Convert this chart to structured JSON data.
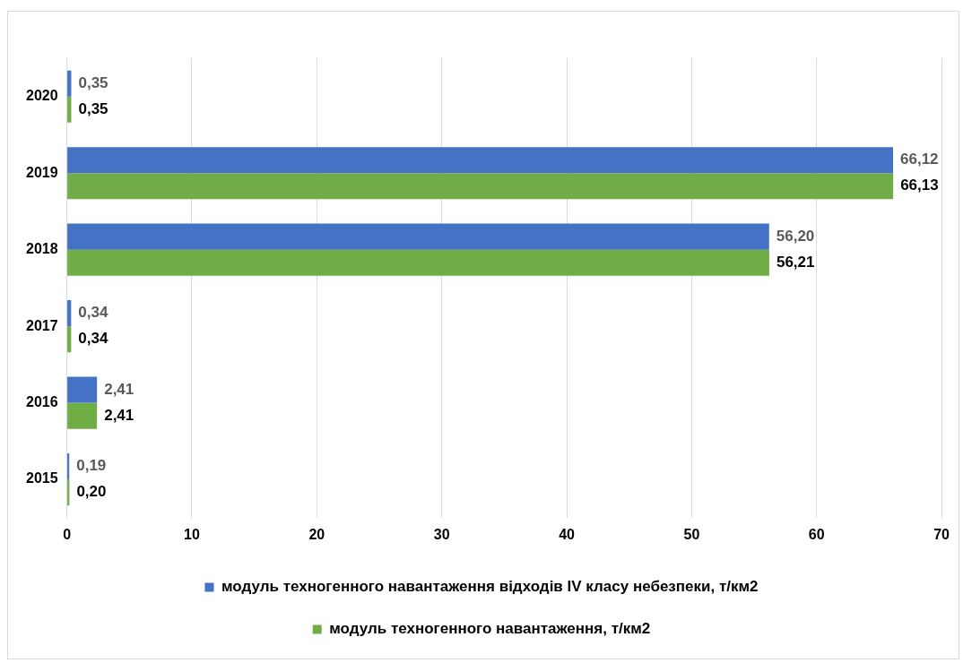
{
  "chart_data": {
    "type": "bar",
    "orientation": "horizontal",
    "categories": [
      "2020",
      "2019",
      "2018",
      "2017",
      "2016",
      "2015"
    ],
    "series": [
      {
        "name": "модуль техногенного навантаження відходів IV класу небезпеки, т/км2",
        "color": "#4472c4",
        "values": [
          0.35,
          66.12,
          56.2,
          0.34,
          2.41,
          0.19
        ],
        "value_labels": [
          "0,35",
          "66,12",
          "56,20",
          "0,34",
          "2,41",
          "0,19"
        ]
      },
      {
        "name": "модуль техногенного навантаження, т/км2",
        "color": "#70ad47",
        "values": [
          0.35,
          66.13,
          56.21,
          0.34,
          2.41,
          0.2
        ],
        "value_labels": [
          "0,35",
          "66,13",
          "56,21",
          "0,34",
          "2,41",
          "0,20"
        ]
      }
    ],
    "xlim": [
      0,
      70
    ],
    "xticks": [
      0,
      10,
      20,
      30,
      40,
      50,
      60,
      70
    ],
    "grid": "x",
    "legend": "bottom"
  }
}
